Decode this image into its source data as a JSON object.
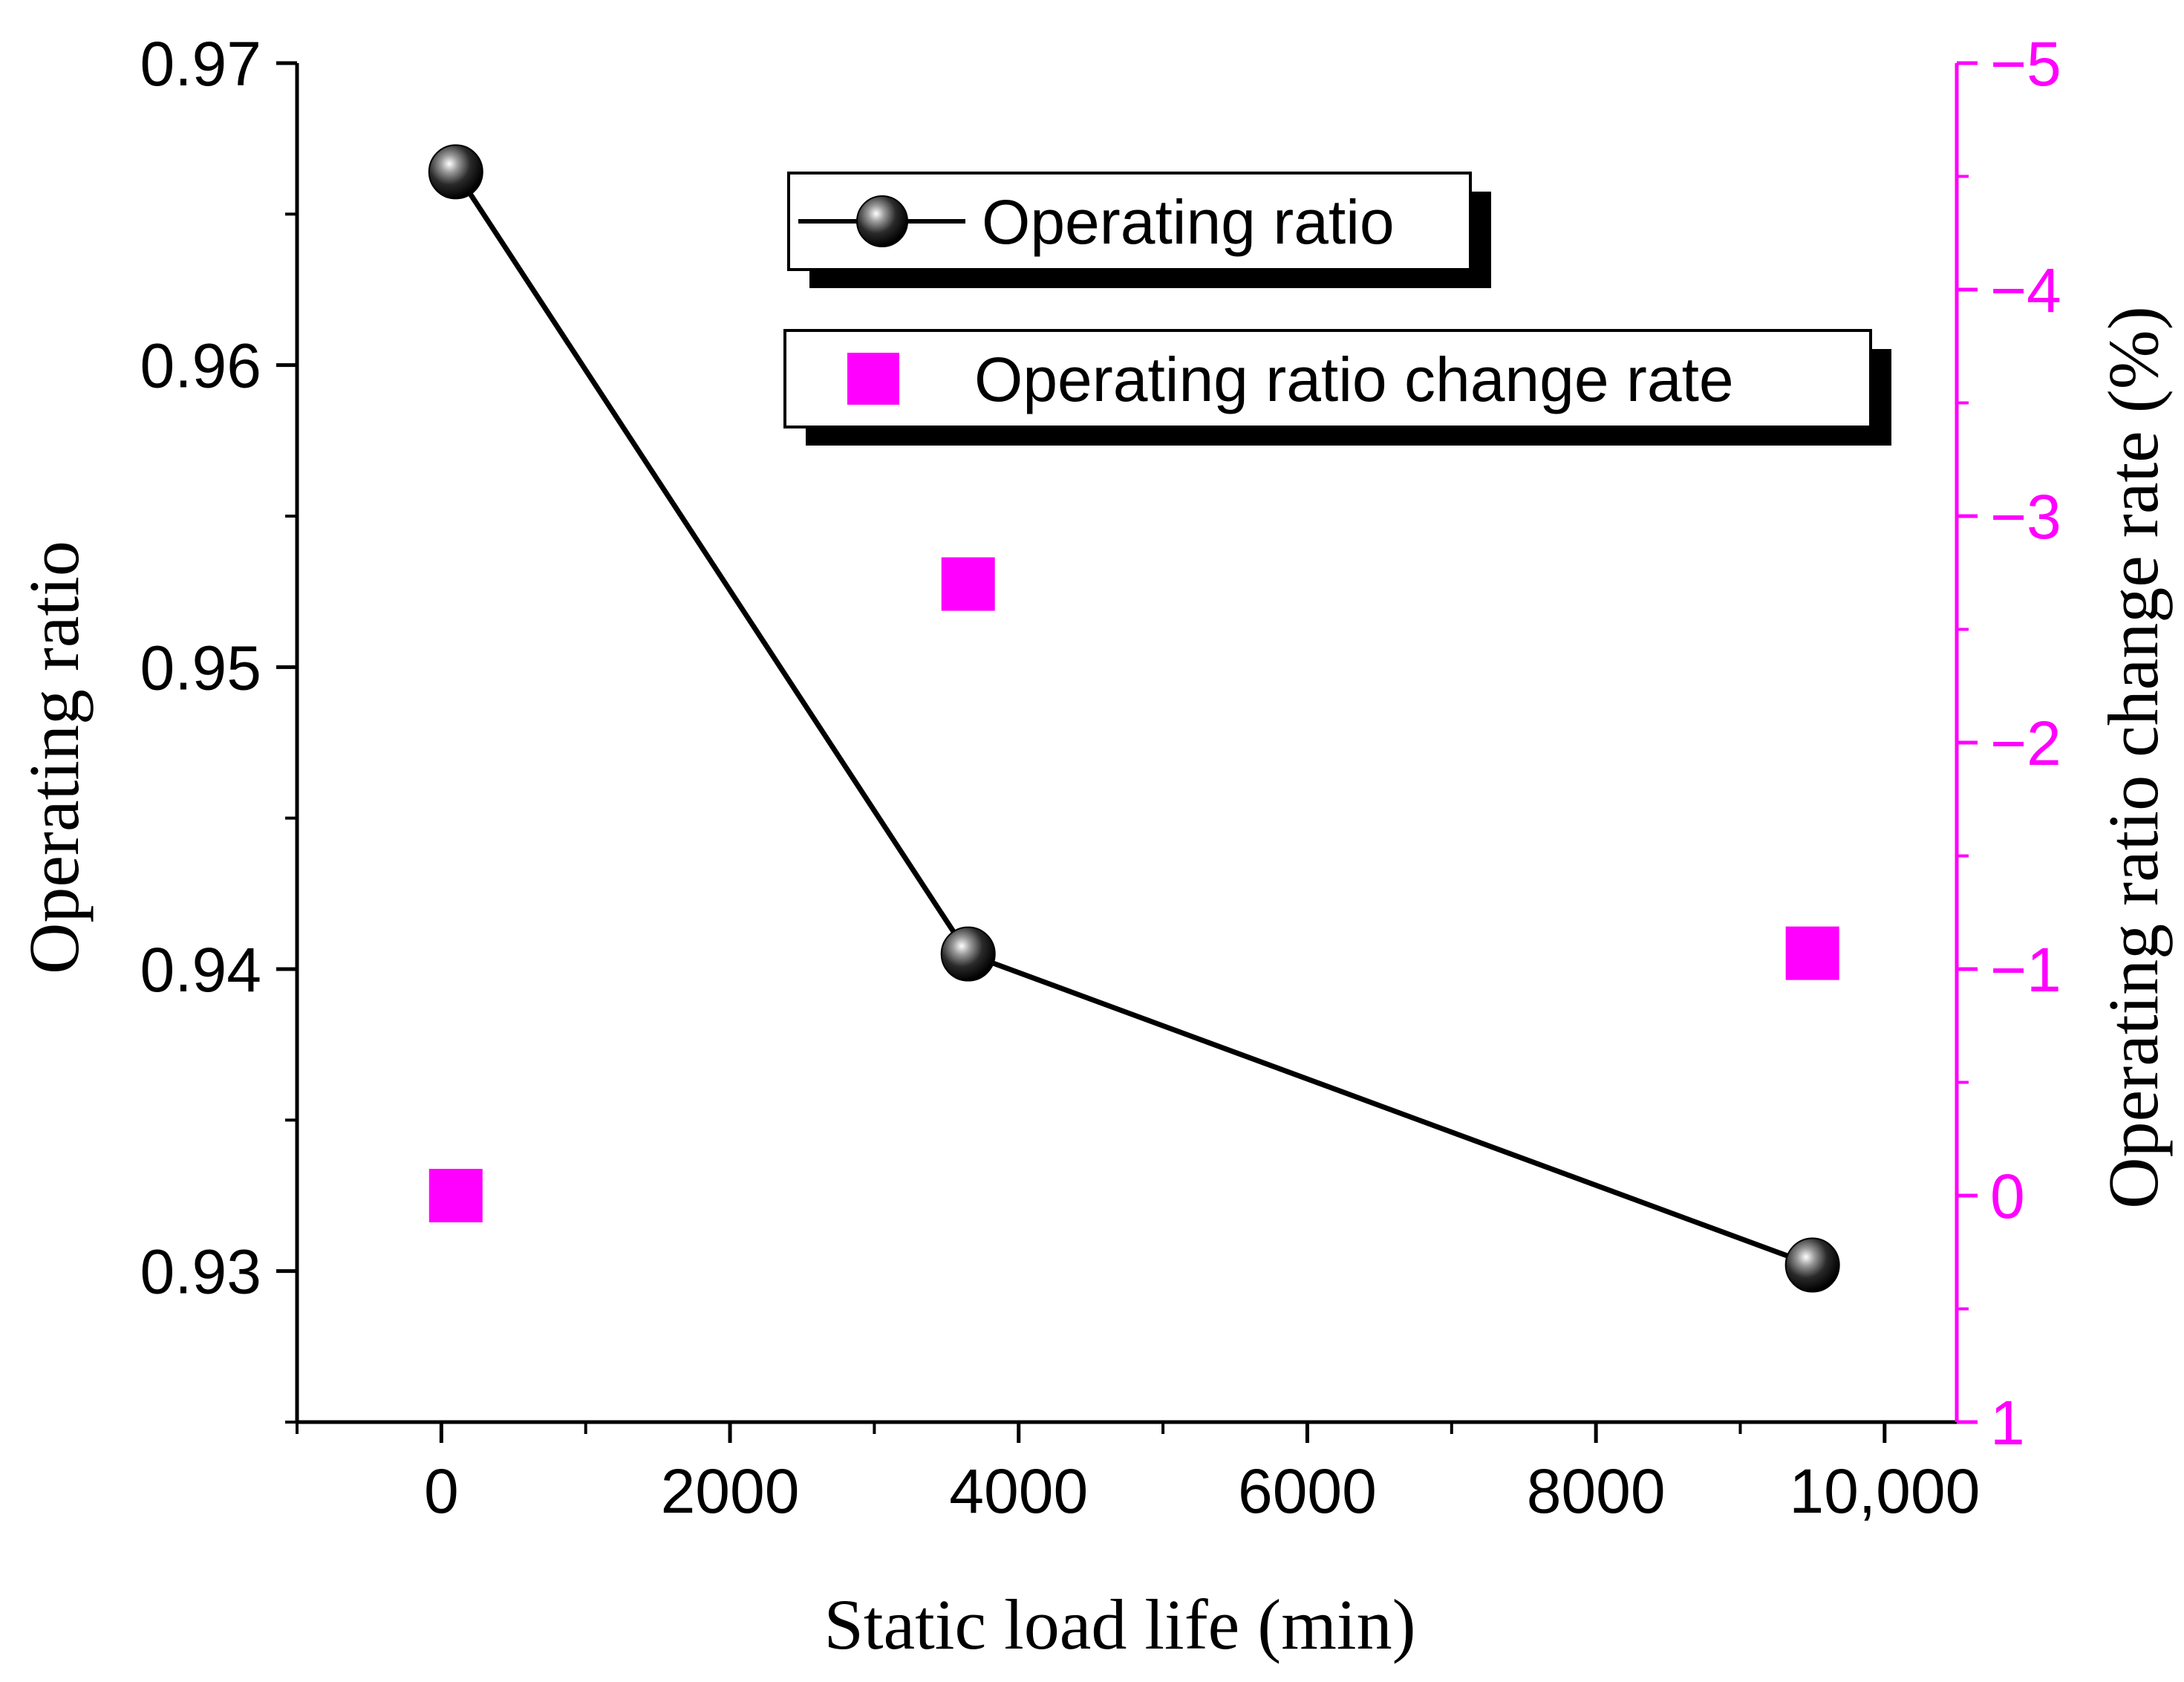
{
  "chart_data": {
    "type": "scatter",
    "xlabel": "Static load life (min)",
    "ylabel": "Operating ratio",
    "y2label": "Operating ratio change rate (%)",
    "xlim": [
      -1000,
      10500
    ],
    "ylim": [
      0.925,
      0.97
    ],
    "y2lim": [
      1,
      -5
    ],
    "x_ticks": [
      0,
      2000,
      4000,
      6000,
      8000,
      10000
    ],
    "x_tick_labels": [
      "0",
      "2000",
      "4000",
      "6000",
      "8000",
      "10,000"
    ],
    "y_ticks": [
      0.93,
      0.94,
      0.95,
      0.96,
      0.97
    ],
    "y_tick_labels": [
      "0.93",
      "0.94",
      "0.95",
      "0.96",
      "0.97"
    ],
    "y2_ticks": [
      1,
      0,
      -1,
      -2,
      -3,
      -4,
      -5
    ],
    "y2_tick_labels": [
      "1",
      "0",
      "−1",
      "−2",
      "−3",
      "−4",
      "−5"
    ],
    "legend_position": "top-right",
    "series": [
      {
        "name": "Operating ratio",
        "axis": "left",
        "style": "line+sphere",
        "color": "#000000",
        "x": [
          100,
          3650,
          9500
        ],
        "y": [
          0.9664,
          0.9405,
          0.9302
        ]
      },
      {
        "name": "Operating ratio change rate",
        "axis": "right",
        "style": "square",
        "color": "#ff00ff",
        "x": [
          100,
          3650,
          9500
        ],
        "y": [
          0,
          -2.7,
          -1.07
        ]
      }
    ]
  }
}
